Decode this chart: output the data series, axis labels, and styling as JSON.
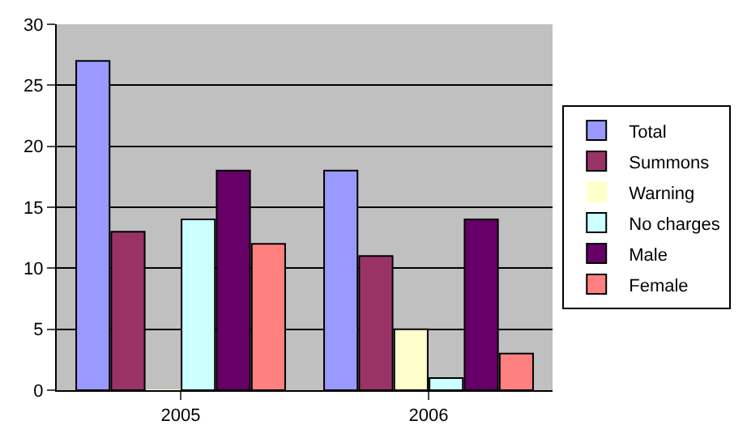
{
  "chart_data": {
    "type": "bar",
    "categories": [
      "2005",
      "2006"
    ],
    "series": [
      {
        "name": "Total",
        "color": "#9999ff",
        "values": [
          27,
          18
        ]
      },
      {
        "name": "Summons",
        "color": "#993366",
        "values": [
          13,
          11
        ]
      },
      {
        "name": "Warning",
        "color": "#ffffcc",
        "values": [
          0,
          5
        ]
      },
      {
        "name": "No charges",
        "color": "#ccffff",
        "values": [
          14,
          1
        ]
      },
      {
        "name": "Male",
        "color": "#660066",
        "values": [
          18,
          14
        ]
      },
      {
        "name": "Female",
        "color": "#ff8080",
        "values": [
          12,
          3
        ]
      }
    ],
    "ylim": [
      0,
      30
    ],
    "yticks": [
      0,
      5,
      10,
      15,
      20,
      25,
      30
    ],
    "grid": "y",
    "legend": "right"
  }
}
